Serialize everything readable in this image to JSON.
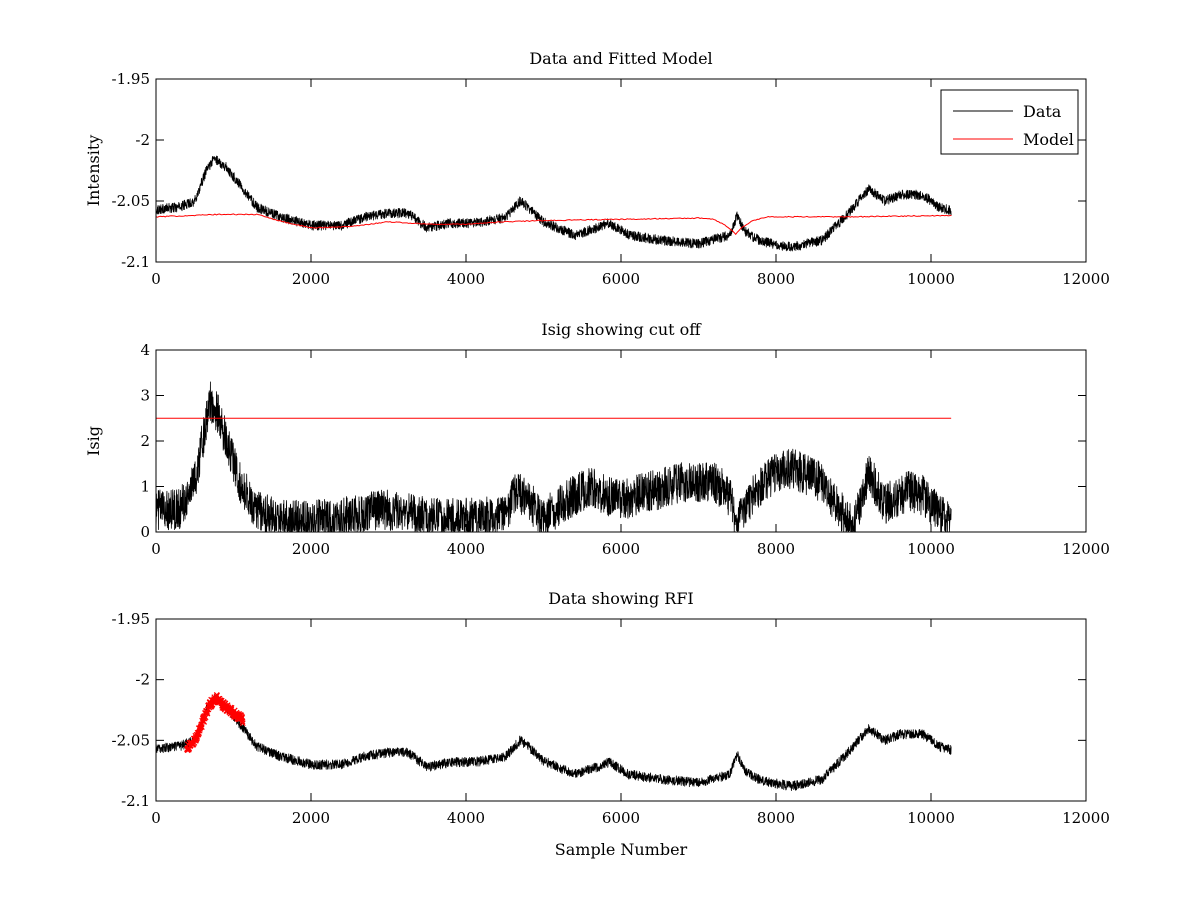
{
  "chart_data": [
    {
      "type": "line",
      "title": "Data and Fitted Model",
      "xlabel": "",
      "ylabel": "Intensity",
      "xlim": [
        0,
        12000
      ],
      "ylim": [
        -2.1,
        -1.95
      ],
      "x_ticks": [
        0,
        2000,
        4000,
        6000,
        8000,
        10000,
        12000
      ],
      "x_tick_labels": [
        "0",
        "2000",
        "4000",
        "6000",
        "8000",
        "10000",
        "12000"
      ],
      "y_ticks": [
        -1.95,
        -2,
        -2.05,
        -2.1
      ],
      "y_tick_labels": [
        "-1.95",
        "-2",
        "-2.05",
        "-2.1"
      ],
      "legend": {
        "position": "top-right",
        "entries": [
          "Data",
          "Model"
        ]
      },
      "series": [
        {
          "name": "Data",
          "color": "#000000",
          "style": "noisy",
          "noise": 0.004,
          "points": [
            [
              0,
              -2.057
            ],
            [
              300,
              -2.055
            ],
            [
              500,
              -2.05
            ],
            [
              650,
              -2.025
            ],
            [
              750,
              -2.015
            ],
            [
              900,
              -2.022
            ],
            [
              1100,
              -2.038
            ],
            [
              1300,
              -2.055
            ],
            [
              1600,
              -2.063
            ],
            [
              2000,
              -2.07
            ],
            [
              2400,
              -2.07
            ],
            [
              2700,
              -2.063
            ],
            [
              3000,
              -2.06
            ],
            [
              3250,
              -2.06
            ],
            [
              3500,
              -2.072
            ],
            [
              3800,
              -2.068
            ],
            [
              4100,
              -2.068
            ],
            [
              4500,
              -2.064
            ],
            [
              4700,
              -2.05
            ],
            [
              4800,
              -2.055
            ],
            [
              5000,
              -2.067
            ],
            [
              5400,
              -2.078
            ],
            [
              5700,
              -2.072
            ],
            [
              5850,
              -2.068
            ],
            [
              6100,
              -2.078
            ],
            [
              6500,
              -2.082
            ],
            [
              7000,
              -2.085
            ],
            [
              7400,
              -2.078
            ],
            [
              7500,
              -2.062
            ],
            [
              7600,
              -2.075
            ],
            [
              7800,
              -2.083
            ],
            [
              8200,
              -2.088
            ],
            [
              8600,
              -2.082
            ],
            [
              8900,
              -2.062
            ],
            [
              9200,
              -2.04
            ],
            [
              9400,
              -2.05
            ],
            [
              9600,
              -2.045
            ],
            [
              9900,
              -2.045
            ],
            [
              10100,
              -2.055
            ],
            [
              10260,
              -2.058
            ]
          ]
        },
        {
          "name": "Model",
          "color": "#ff0000",
          "style": "smooth",
          "noise": 0,
          "points": [
            [
              0,
              -2.063
            ],
            [
              800,
              -2.061
            ],
            [
              1300,
              -2.061
            ],
            [
              1700,
              -2.068
            ],
            [
              2000,
              -2.072
            ],
            [
              2500,
              -2.071
            ],
            [
              3000,
              -2.067
            ],
            [
              3500,
              -2.069
            ],
            [
              4000,
              -2.069
            ],
            [
              4500,
              -2.067
            ],
            [
              5000,
              -2.066
            ],
            [
              6000,
              -2.065
            ],
            [
              7000,
              -2.064
            ],
            [
              7200,
              -2.065
            ],
            [
              7350,
              -2.07
            ],
            [
              7480,
              -2.077
            ],
            [
              7550,
              -2.072
            ],
            [
              7700,
              -2.066
            ],
            [
              7900,
              -2.063
            ],
            [
              8500,
              -2.063
            ],
            [
              9000,
              -2.063
            ],
            [
              10000,
              -2.062
            ],
            [
              10260,
              -2.062
            ]
          ]
        }
      ]
    },
    {
      "type": "line",
      "title": "Isig showing cut off",
      "xlabel": "",
      "ylabel": "Isig",
      "xlim": [
        0,
        12000
      ],
      "ylim": [
        0,
        4
      ],
      "x_ticks": [
        0,
        2000,
        4000,
        6000,
        8000,
        10000,
        12000
      ],
      "x_tick_labels": [
        "0",
        "2000",
        "4000",
        "6000",
        "8000",
        "10000",
        "12000"
      ],
      "y_ticks": [
        0,
        1,
        2,
        3,
        4
      ],
      "y_tick_labels": [
        "0",
        "1",
        "2",
        "3",
        "4"
      ],
      "series": [
        {
          "name": "Isig",
          "color": "#000000",
          "style": "noisy",
          "noise": 0.45,
          "clip_min": 0,
          "points": [
            [
              0,
              0.5
            ],
            [
              300,
              0.5
            ],
            [
              500,
              1.1
            ],
            [
              600,
              2.0
            ],
            [
              700,
              2.9
            ],
            [
              800,
              2.6
            ],
            [
              950,
              1.8
            ],
            [
              1100,
              1.0
            ],
            [
              1300,
              0.5
            ],
            [
              1600,
              0.25
            ],
            [
              2000,
              0.25
            ],
            [
              2500,
              0.35
            ],
            [
              2900,
              0.5
            ],
            [
              3200,
              0.45
            ],
            [
              3500,
              0.3
            ],
            [
              4000,
              0.3
            ],
            [
              4500,
              0.35
            ],
            [
              4650,
              0.9
            ],
            [
              4800,
              0.7
            ],
            [
              5000,
              0.3
            ],
            [
              5300,
              0.7
            ],
            [
              5600,
              1.0
            ],
            [
              5800,
              0.8
            ],
            [
              6000,
              0.7
            ],
            [
              6400,
              0.9
            ],
            [
              6800,
              1.1
            ],
            [
              7200,
              1.1
            ],
            [
              7400,
              0.8
            ],
            [
              7500,
              0.1
            ],
            [
              7600,
              0.6
            ],
            [
              7900,
              1.2
            ],
            [
              8200,
              1.4
            ],
            [
              8600,
              1.1
            ],
            [
              8900,
              0.3
            ],
            [
              9000,
              0.1
            ],
            [
              9200,
              1.3
            ],
            [
              9400,
              0.6
            ],
            [
              9700,
              0.9
            ],
            [
              9900,
              0.8
            ],
            [
              10100,
              0.4
            ],
            [
              10260,
              0.15
            ]
          ]
        },
        {
          "name": "Cut off",
          "color": "#ff0000",
          "style": "smooth",
          "noise": 0,
          "points": [
            [
              0,
              2.5
            ],
            [
              10260,
              2.5
            ]
          ]
        }
      ]
    },
    {
      "type": "line",
      "title": "Data showing RFI",
      "xlabel": "Sample Number",
      "ylabel": "",
      "xlim": [
        0,
        12000
      ],
      "ylim": [
        -2.1,
        -1.95
      ],
      "x_ticks": [
        0,
        2000,
        4000,
        6000,
        8000,
        10000,
        12000
      ],
      "x_tick_labels": [
        "0",
        "2000",
        "4000",
        "6000",
        "8000",
        "10000",
        "12000"
      ],
      "y_ticks": [
        -1.95,
        -2,
        -2.05,
        -2.1
      ],
      "y_tick_labels": [
        "-1.95",
        "-2",
        "-2.05",
        "-2.1"
      ],
      "series": [
        {
          "name": "Data",
          "color": "#000000",
          "style": "noisy",
          "noise": 0.004,
          "points": [
            [
              0,
              -2.057
            ],
            [
              300,
              -2.055
            ],
            [
              500,
              -2.05
            ],
            [
              650,
              -2.025
            ],
            [
              750,
              -2.015
            ],
            [
              900,
              -2.022
            ],
            [
              1100,
              -2.038
            ],
            [
              1300,
              -2.055
            ],
            [
              1600,
              -2.063
            ],
            [
              2000,
              -2.07
            ],
            [
              2400,
              -2.07
            ],
            [
              2700,
              -2.063
            ],
            [
              3000,
              -2.06
            ],
            [
              3250,
              -2.06
            ],
            [
              3500,
              -2.072
            ],
            [
              3800,
              -2.068
            ],
            [
              4100,
              -2.068
            ],
            [
              4500,
              -2.064
            ],
            [
              4700,
              -2.05
            ],
            [
              4800,
              -2.055
            ],
            [
              5000,
              -2.067
            ],
            [
              5400,
              -2.078
            ],
            [
              5700,
              -2.072
            ],
            [
              5850,
              -2.068
            ],
            [
              6100,
              -2.078
            ],
            [
              6500,
              -2.082
            ],
            [
              7000,
              -2.085
            ],
            [
              7400,
              -2.078
            ],
            [
              7500,
              -2.062
            ],
            [
              7600,
              -2.075
            ],
            [
              7800,
              -2.083
            ],
            [
              8200,
              -2.088
            ],
            [
              8600,
              -2.082
            ],
            [
              8900,
              -2.062
            ],
            [
              9200,
              -2.04
            ],
            [
              9400,
              -2.05
            ],
            [
              9600,
              -2.045
            ],
            [
              9900,
              -2.045
            ],
            [
              10100,
              -2.055
            ],
            [
              10260,
              -2.058
            ]
          ]
        },
        {
          "name": "RFI",
          "color": "#ff0000",
          "style": "markers",
          "noise": 0.003,
          "points": [
            [
              400,
              -2.057
            ],
            [
              500,
              -2.05
            ],
            [
              600,
              -2.035
            ],
            [
              700,
              -2.02
            ],
            [
              780,
              -2.015
            ],
            [
              850,
              -2.02
            ],
            [
              950,
              -2.025
            ],
            [
              1050,
              -2.03
            ],
            [
              1120,
              -2.033
            ]
          ]
        }
      ]
    }
  ]
}
